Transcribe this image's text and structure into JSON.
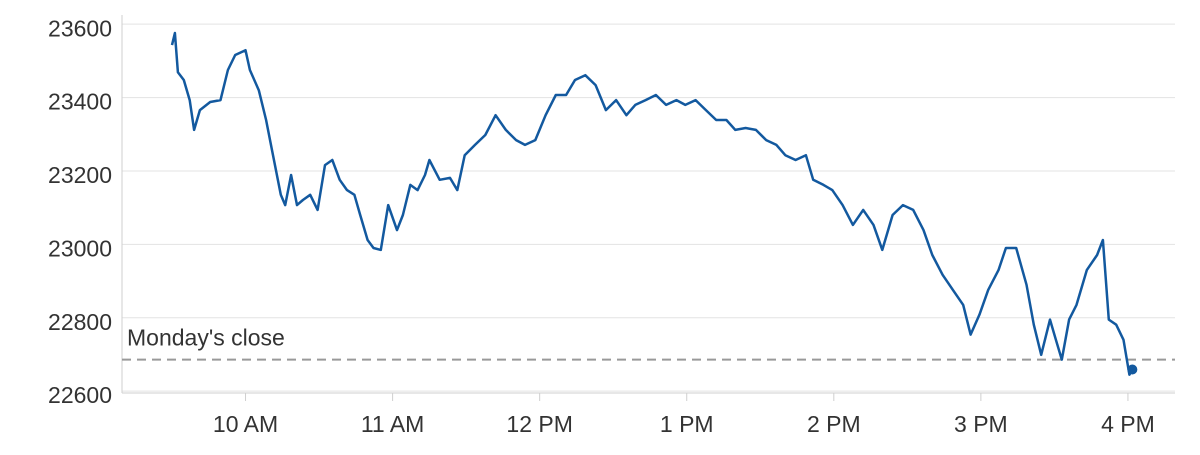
{
  "chart_data": {
    "type": "line",
    "x": [
      9.5,
      9.52,
      9.54,
      9.58,
      9.62,
      9.65,
      9.69,
      9.76,
      9.83,
      9.88,
      9.93,
      10.0,
      10.03,
      10.09,
      10.14,
      10.18,
      10.24,
      10.27,
      10.31,
      10.35,
      10.39,
      10.44,
      10.49,
      10.54,
      10.59,
      10.64,
      10.69,
      10.74,
      10.78,
      10.83,
      10.87,
      10.92,
      10.97,
      11.03,
      11.07,
      11.12,
      11.17,
      11.22,
      11.25,
      11.32,
      11.39,
      11.44,
      11.49,
      11.56,
      11.63,
      11.7,
      11.77,
      11.84,
      11.9,
      11.97,
      12.04,
      12.11,
      12.18,
      12.24,
      12.31,
      12.38,
      12.45,
      12.52,
      12.59,
      12.65,
      12.72,
      12.79,
      12.86,
      12.93,
      12.99,
      13.06,
      13.13,
      13.2,
      13.27,
      13.33,
      13.4,
      13.47,
      13.54,
      13.61,
      13.67,
      13.74,
      13.81,
      13.86,
      13.93,
      13.99,
      14.06,
      14.13,
      14.2,
      14.27,
      14.33,
      14.4,
      14.47,
      14.54,
      14.61,
      14.67,
      14.74,
      14.81,
      14.88,
      14.93,
      14.99,
      15.05,
      15.12,
      15.17,
      15.24,
      15.31,
      15.36,
      15.41,
      15.47,
      15.51,
      15.55,
      15.6,
      15.65,
      15.72,
      15.79,
      15.83,
      15.87,
      15.92,
      15.97,
      16.01,
      16.03
    ],
    "series": [
      {
        "color": "#13599f",
        "values": [
          23543,
          23576,
          23469,
          23448,
          23393,
          23312,
          23366,
          23388,
          23393,
          23475,
          23516,
          23529,
          23475,
          23420,
          23339,
          23257,
          23135,
          23107,
          23189,
          23107,
          23121,
          23135,
          23094,
          23216,
          23230,
          23176,
          23148,
          23135,
          23080,
          23012,
          22990,
          22985,
          23107,
          23039,
          23080,
          23162,
          23148,
          23189,
          23230,
          23176,
          23181,
          23148,
          23243,
          23271,
          23298,
          23352,
          23312,
          23284,
          23271,
          23284,
          23352,
          23407,
          23407,
          23448,
          23461,
          23434,
          23366,
          23393,
          23352,
          23380,
          23393,
          23407,
          23380,
          23393,
          23380,
          23393,
          23366,
          23339,
          23339,
          23312,
          23317,
          23312,
          23284,
          23271,
          23243,
          23230,
          23243,
          23176,
          23162,
          23148,
          23107,
          23053,
          23094,
          23053,
          22985,
          23080,
          23107,
          23094,
          23039,
          22971,
          22917,
          22876,
          22835,
          22754,
          22808,
          22876,
          22930,
          22990,
          22990,
          22890,
          22781,
          22699,
          22795,
          22740,
          22686,
          22795,
          22835,
          22930,
          22971,
          23012,
          22795,
          22781,
          22740,
          22645,
          22659
        ]
      }
    ],
    "xlim": [
      9.16,
      16.32
    ],
    "xticks": [
      {
        "value": 10,
        "label": "10 AM"
      },
      {
        "value": 11,
        "label": "11 AM"
      },
      {
        "value": 12,
        "label": "12 PM"
      },
      {
        "value": 13,
        "label": "1 PM"
      },
      {
        "value": 14,
        "label": "2 PM"
      },
      {
        "value": 15,
        "label": "3 PM"
      },
      {
        "value": 16,
        "label": "4 PM"
      }
    ],
    "ylim": [
      22595,
      23625
    ],
    "yticks": [
      22600,
      22800,
      23000,
      23200,
      23400,
      23600
    ],
    "grid": true,
    "reference_line": {
      "label": "Monday's close",
      "value": 22686,
      "color": "#999999"
    }
  }
}
